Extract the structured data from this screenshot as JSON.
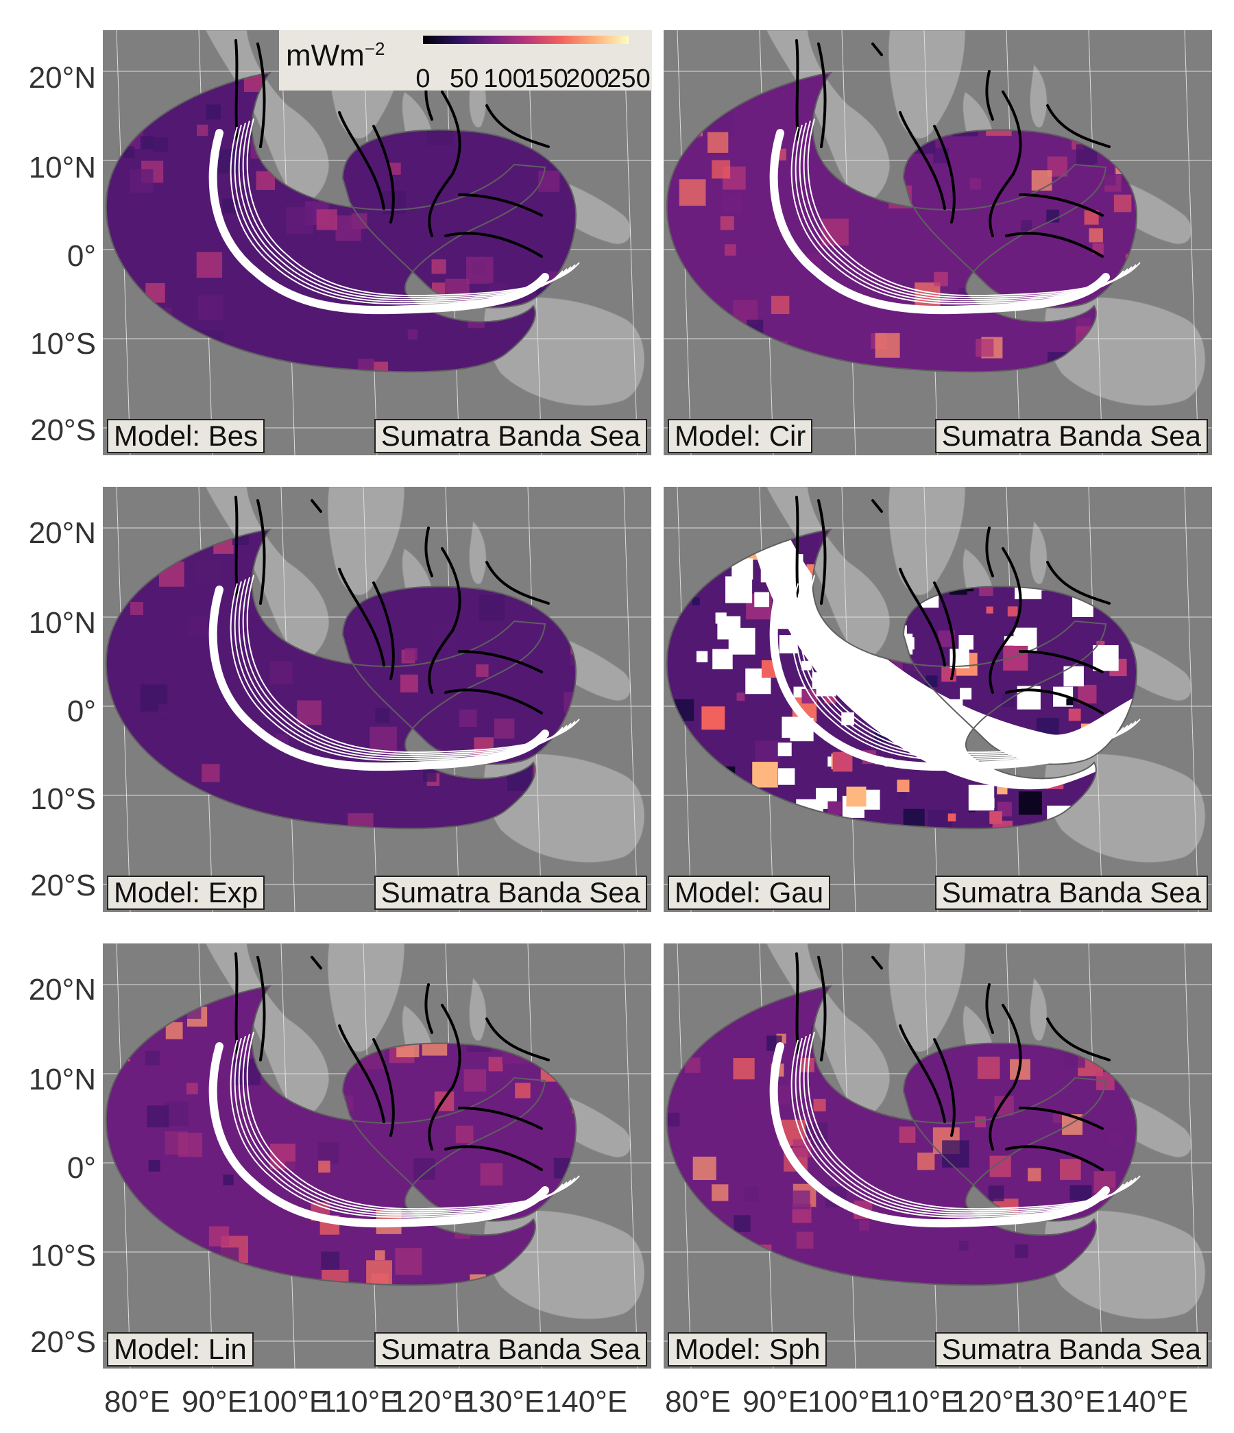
{
  "legend": {
    "title": "mWm",
    "title_exponent": "−2",
    "ticks": [
      "0",
      "50",
      "100",
      "150",
      "200",
      "250"
    ],
    "colormap": [
      "#000004",
      "#2c115f",
      "#721f81",
      "#b73779",
      "#f1605d",
      "#feb078",
      "#fcfdbf"
    ]
  },
  "axes": {
    "y_labels": [
      "20°N",
      "10°N",
      "0°",
      "10°S",
      "20°S"
    ],
    "x_labels": [
      "80°E",
      "90°E",
      "100°E",
      "110°E",
      "120°E",
      "130°E",
      "140°E"
    ]
  },
  "region_label": "Sumatra Banda Sea",
  "panels": [
    {
      "model_label": "Model: Bes",
      "style": "smooth"
    },
    {
      "model_label": "Model: Cir",
      "style": "hot"
    },
    {
      "model_label": "Model: Exp",
      "style": "smooth"
    },
    {
      "model_label": "Model: Gau",
      "style": "noisy"
    },
    {
      "model_label": "Model: Lin",
      "style": "hot"
    },
    {
      "model_label": "Model: Sph",
      "style": "hot"
    }
  ],
  "colors": {
    "panel_background": "#7f7f7f",
    "land": "#a6a6a6",
    "label_background": "#e8e6df",
    "trench": "#ffffff",
    "faults": "#000000"
  }
}
